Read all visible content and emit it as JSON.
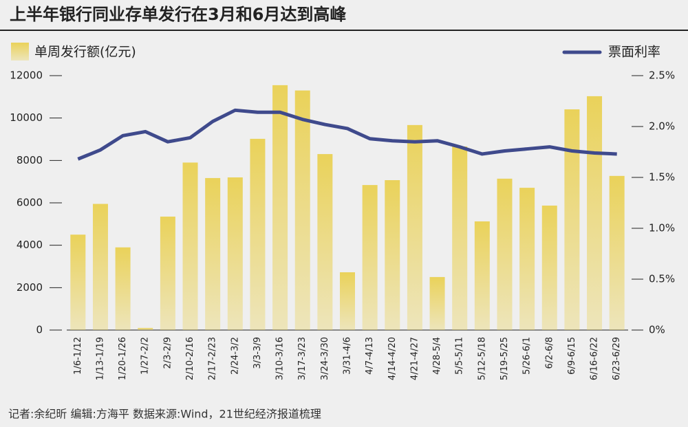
{
  "chart_data": {
    "type": "bar",
    "title": "上半年银行同业存单发行在3月和6月达到高峰",
    "source": "记者:余纪昕  编辑:方海平  数据来源:Wind，21世纪经济报道梳理",
    "categories": [
      "1/6-1/12",
      "1/13-1/19",
      "1/20-1/26",
      "1/27-2/2",
      "2/3-2/9",
      "2/10-2/16",
      "2/17-2/23",
      "2/24-3/2",
      "3/3-3/9",
      "3/10-3/16",
      "3/17-3/23",
      "3/24-3/30",
      "3/31-4/6",
      "4/7-4/13",
      "4/14-4/20",
      "4/21-4/27",
      "4/28-5/4",
      "5/5-5/11",
      "5/12-5/18",
      "5/19-5/25",
      "5/26-6/1",
      "6/2-6/8",
      "6/9-6/15",
      "6/16-6/22",
      "6/23-6/29"
    ],
    "series": [
      {
        "name": "单周发行额(亿元)",
        "type": "bar",
        "color": "#ead25a",
        "values": [
          4500,
          5950,
          3900,
          100,
          5350,
          7900,
          7170,
          7200,
          9020,
          11550,
          11300,
          8300,
          2725,
          6840,
          7070,
          9670,
          2500,
          8660,
          5125,
          7140,
          6710,
          5870,
          10410,
          11030,
          7270
        ]
      },
      {
        "name": "票面利率",
        "type": "line",
        "axis": "y2",
        "color": "#3f4a8c",
        "values": [
          1.68,
          1.77,
          1.91,
          1.95,
          1.85,
          1.89,
          2.05,
          2.16,
          2.14,
          2.14,
          2.07,
          2.02,
          1.98,
          1.88,
          1.86,
          1.85,
          1.86,
          1.8,
          1.73,
          1.76,
          1.78,
          1.8,
          1.76,
          1.74,
          1.73
        ]
      }
    ],
    "ylim": [
      0,
      12000
    ],
    "yticks": [
      0,
      2000,
      4000,
      6000,
      8000,
      10000,
      12000
    ],
    "y2lim": [
      0,
      2.5
    ],
    "y2ticks": [
      {
        "value": 0,
        "label": "0%"
      },
      {
        "value": 0.5,
        "label": "0.5%"
      },
      {
        "value": 1,
        "label": "1.0%"
      },
      {
        "value": 1.5,
        "label": "1.5%"
      },
      {
        "value": 2,
        "label": "2.0%"
      },
      {
        "value": 2.5,
        "label": "2.5%"
      }
    ]
  }
}
